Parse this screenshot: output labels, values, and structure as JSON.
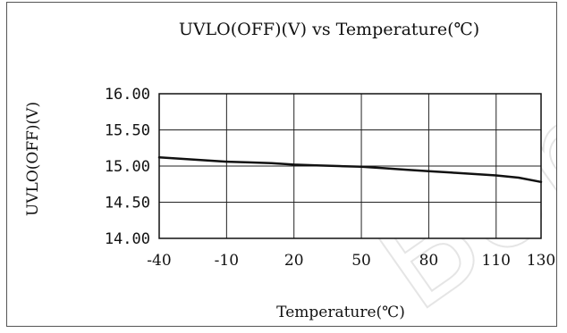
{
  "chart_data": {
    "type": "line",
    "title": "UVLO(OFF)(V) vs Temperature(℃)",
    "xlabel": "Temperature(℃)",
    "ylabel": "UVLO(OFF)(V)",
    "xlim": [
      -40,
      130
    ],
    "ylim": [
      14.0,
      16.0
    ],
    "x_ticks": [
      -40,
      -10,
      20,
      50,
      80,
      110,
      130
    ],
    "x_tick_labels": [
      "-40",
      "-10",
      "20",
      "50",
      "80",
      "110",
      "130"
    ],
    "y_ticks": [
      16.0,
      15.5,
      15.0,
      14.5,
      14.0
    ],
    "y_tick_labels": [
      "16.00",
      "15.50",
      "15.00",
      "14.50",
      "14.00"
    ],
    "grid": true,
    "series": [
      {
        "color": "#111111",
        "x": [
          -40,
          -30,
          -20,
          -10,
          0,
          10,
          20,
          30,
          40,
          50,
          60,
          70,
          80,
          90,
          100,
          110,
          120,
          130
        ],
        "y": [
          15.12,
          15.1,
          15.08,
          15.06,
          15.05,
          15.04,
          15.02,
          15.01,
          15.0,
          14.99,
          14.97,
          14.95,
          14.93,
          14.91,
          14.89,
          14.87,
          14.84,
          14.78
        ]
      }
    ]
  },
  "watermark": "Bon"
}
